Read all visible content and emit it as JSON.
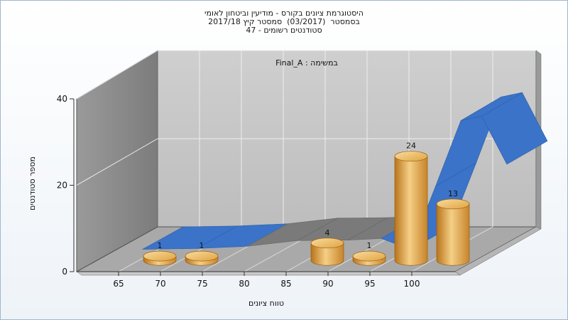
{
  "chart_data": {
    "type": "bar",
    "title_lines": [
      "היסטוגרמת ציונים בקורס - מודיעין וביטחון לאומי",
      "בסמסטר  (03/2017)  סמסטר קיץ 2017/18",
      "סטודנטים רשומים - 47"
    ],
    "annotation": "Final_A : במשימה",
    "xlabel": "טווח ציונים",
    "ylabel": "מספר סטודנטים",
    "x_ticks": [
      "65",
      "70",
      "75",
      "80",
      "85",
      "90",
      "95",
      "100"
    ],
    "y_ticks": [
      "0",
      "20",
      "40"
    ],
    "ylim": [
      0,
      40
    ],
    "bars": [
      {
        "x": 67.5,
        "value": 1,
        "label": "1"
      },
      {
        "x": 72.5,
        "value": 1,
        "label": "1"
      },
      {
        "x": 87.5,
        "value": 4,
        "label": "4"
      },
      {
        "x": 92.5,
        "value": 1,
        "label": "1"
      },
      {
        "x": 97.5,
        "value": 24,
        "label": "24"
      },
      {
        "x": 102.5,
        "value": 13,
        "label": "13"
      }
    ],
    "distribution_curve": [
      {
        "x": 63.5,
        "y": 0.5
      },
      {
        "x": 70,
        "y": 0.7
      },
      {
        "x": 76,
        "y": 1.2
      },
      {
        "x": 82,
        "y": 2.5
      },
      {
        "x": 88,
        "y": 2.6
      },
      {
        "x": 92,
        "y": 3.0
      },
      {
        "x": 95.5,
        "y": 0.5
      },
      {
        "x": 98.5,
        "y": 15
      },
      {
        "x": 101.5,
        "y": 30
      },
      {
        "x": 104,
        "y": 31
      },
      {
        "x": 107,
        "y": 20
      }
    ],
    "grid": true,
    "legend": "none",
    "colors": {
      "bar_light": "#f5cf86",
      "bar_mid": "#e0a33f",
      "bar_dark": "#b8741a",
      "curve_blue": "#3a73c8",
      "curve_gray": "#7a7a7a",
      "back_wall": "#c4c4c4",
      "side_wall": "#8a8a8a",
      "floor": "#a9a9a9"
    }
  }
}
